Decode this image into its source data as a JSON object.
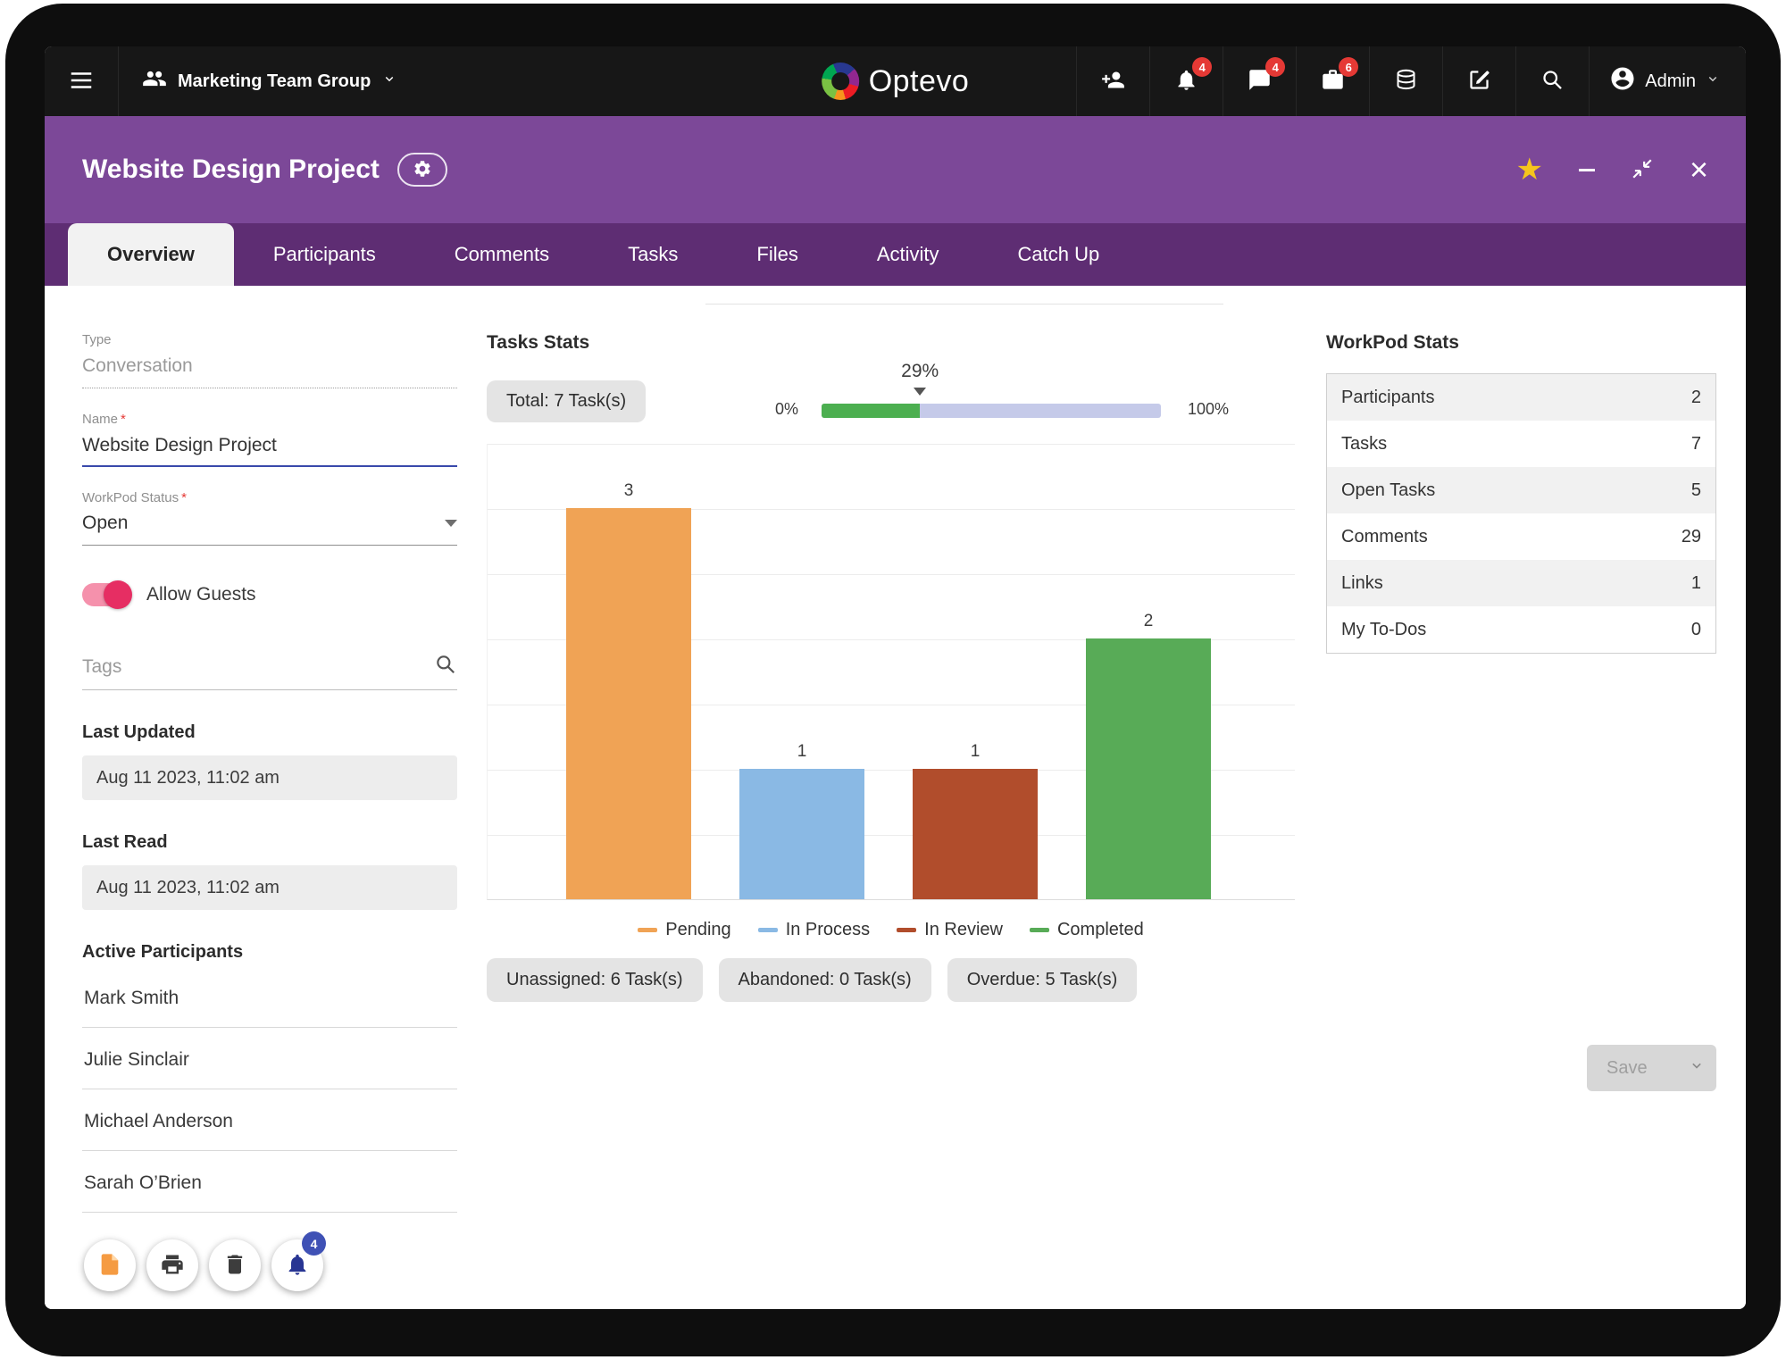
{
  "topbar": {
    "group_name": "Marketing Team Group",
    "logo_text": "Optevo",
    "admin_label": "Admin",
    "badges": {
      "alerts": "4",
      "messages": "4",
      "work": "6"
    }
  },
  "header": {
    "title": "Website Design Project"
  },
  "tabs": [
    {
      "label": "Overview",
      "active": true
    },
    {
      "label": "Participants",
      "active": false
    },
    {
      "label": "Comments",
      "active": false
    },
    {
      "label": "Tasks",
      "active": false
    },
    {
      "label": "Files",
      "active": false
    },
    {
      "label": "Activity",
      "active": false
    },
    {
      "label": "Catch Up",
      "active": false
    }
  ],
  "form": {
    "type_label": "Type",
    "type_value": "Conversation",
    "name_label": "Name",
    "required_marker": "*",
    "name_value": "Website Design Project",
    "status_label": "WorkPod Status",
    "status_value": "Open",
    "allow_guests_label": "Allow Guests",
    "tags_placeholder": "Tags",
    "last_updated_label": "Last Updated",
    "last_updated_value": "Aug 11 2023, 11:02 am",
    "last_read_label": "Last Read",
    "last_read_value": "Aug 11 2023, 11:02 am",
    "active_participants_label": "Active Participants",
    "participants": [
      "Mark Smith",
      "Julie Sinclair",
      "Michael Anderson",
      "Sarah O’Brien"
    ],
    "notify_badge": "4"
  },
  "tasks_stats": {
    "title": "Tasks Stats",
    "total_label": "Total: 7 Task(s)",
    "progress_value": 29,
    "progress_label": "29%",
    "progress_min_label": "0%",
    "progress_max_label": "100%",
    "progress_color": "#4caf50",
    "progress_track_color": "#c5cae9",
    "summary_pills": [
      "Unassigned: 6 Task(s)",
      "Abandoned: 0 Task(s)",
      "Overdue: 5 Task(s)"
    ]
  },
  "chart_data": {
    "type": "bar",
    "title": "Tasks Stats",
    "categories": [
      "Pending",
      "In Process",
      "In Review",
      "Completed"
    ],
    "values": [
      3,
      1,
      1,
      2
    ],
    "colors": [
      "#f0a355",
      "#8ab9e4",
      "#b14d2c",
      "#58ab57"
    ],
    "xlabel": "",
    "ylabel": "",
    "ylim": [
      0,
      3.5
    ],
    "grid": true,
    "legend_position": "bottom"
  },
  "workpod_stats": {
    "title": "WorkPod Stats",
    "rows": [
      {
        "label": "Participants",
        "value": "2"
      },
      {
        "label": "Tasks",
        "value": "7"
      },
      {
        "label": "Open Tasks",
        "value": "5"
      },
      {
        "label": "Comments",
        "value": "29"
      },
      {
        "label": "Links",
        "value": "1"
      },
      {
        "label": "My To-Dos",
        "value": "0"
      }
    ]
  },
  "actions": {
    "save_label": "Save"
  }
}
